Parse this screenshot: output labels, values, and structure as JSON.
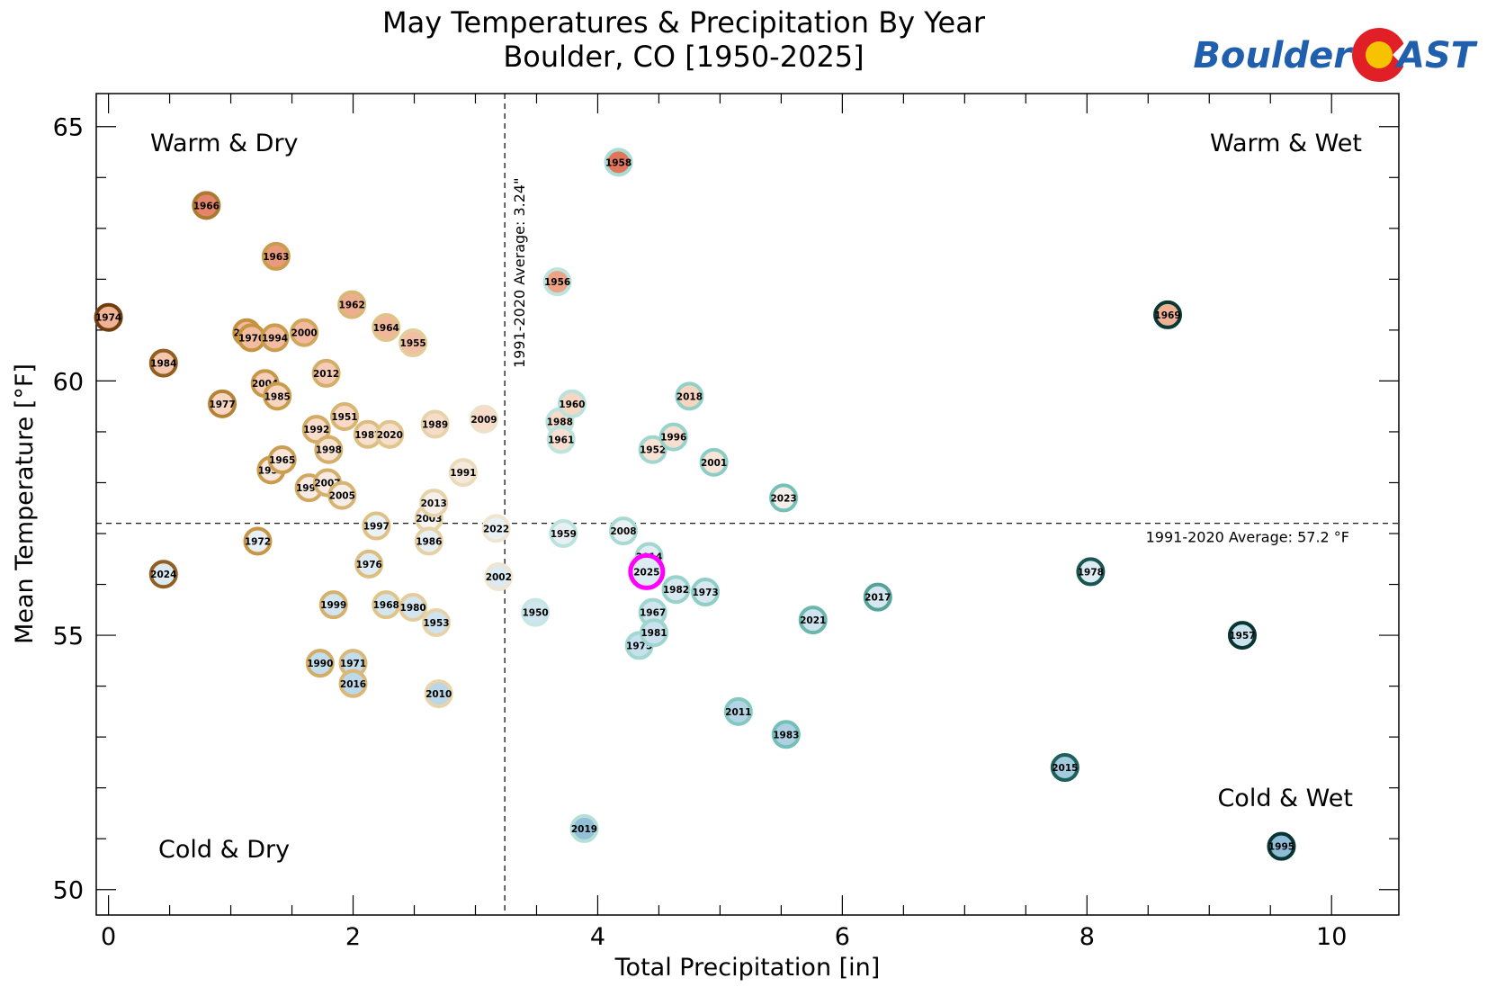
{
  "chart_data": {
    "type": "scatter",
    "title": "May Temperatures & Precipitation By Year",
    "subtitle": "Boulder, CO [1950-2025]",
    "xlabel": "Total Precipitation [in]",
    "ylabel": "Mean Temperature [°F]",
    "xlim": [
      -0.1,
      10.55
    ],
    "ylim": [
      49.5,
      65.65
    ],
    "xticks": [
      0,
      2,
      4,
      6,
      8,
      10
    ],
    "yticks": [
      50,
      55,
      60,
      65
    ],
    "reference_lines": {
      "precip_avg": 3.24,
      "precip_avg_label": "1991-2020 Average: 3.24\"",
      "temp_avg": 57.2,
      "temp_avg_label": "1991-2020 Average: 57.2 °F"
    },
    "quadrant_labels": {
      "warm_dry": "Warm & Dry",
      "warm_wet": "Warm & Wet",
      "cold_dry": "Cold & Dry",
      "cold_wet": "Cold & Wet"
    },
    "highlight_year": "2025",
    "highlight_color": "#ff00ff",
    "points": [
      {
        "year": "1974",
        "x": 0.0,
        "y": 61.25
      },
      {
        "year": "1984",
        "x": 0.45,
        "y": 60.35
      },
      {
        "year": "2024",
        "x": 0.45,
        "y": 56.2
      },
      {
        "year": "1966",
        "x": 0.8,
        "y": 63.45
      },
      {
        "year": "1977",
        "x": 0.93,
        "y": 59.55
      },
      {
        "year": "2006",
        "x": 1.13,
        "y": 60.95
      },
      {
        "year": "1970",
        "x": 1.17,
        "y": 60.85
      },
      {
        "year": "1972",
        "x": 1.22,
        "y": 56.85
      },
      {
        "year": "2004",
        "x": 1.28,
        "y": 59.95
      },
      {
        "year": "1954",
        "x": 1.33,
        "y": 58.25
      },
      {
        "year": "1994",
        "x": 1.36,
        "y": 60.85
      },
      {
        "year": "1963",
        "x": 1.37,
        "y": 62.45
      },
      {
        "year": "1985",
        "x": 1.38,
        "y": 59.7
      },
      {
        "year": "1965",
        "x": 1.42,
        "y": 58.45
      },
      {
        "year": "2000",
        "x": 1.6,
        "y": 60.95
      },
      {
        "year": "1993",
        "x": 1.64,
        "y": 57.9
      },
      {
        "year": "1992",
        "x": 1.7,
        "y": 59.05
      },
      {
        "year": "1990",
        "x": 1.73,
        "y": 54.45
      },
      {
        "year": "1962",
        "x": 1.99,
        "y": 61.5
      },
      {
        "year": "2012",
        "x": 1.78,
        "y": 60.15
      },
      {
        "year": "2007",
        "x": 1.79,
        "y": 58.0
      },
      {
        "year": "1998",
        "x": 1.8,
        "y": 58.65
      },
      {
        "year": "1999",
        "x": 1.84,
        "y": 55.6
      },
      {
        "year": "2005",
        "x": 1.91,
        "y": 57.75
      },
      {
        "year": "1951",
        "x": 1.93,
        "y": 59.3
      },
      {
        "year": "1971",
        "x": 2.0,
        "y": 54.45
      },
      {
        "year": "2016",
        "x": 2.0,
        "y": 54.05
      },
      {
        "year": "1987",
        "x": 2.12,
        "y": 58.95
      },
      {
        "year": "1976",
        "x": 2.13,
        "y": 56.4
      },
      {
        "year": "1997",
        "x": 2.19,
        "y": 57.15
      },
      {
        "year": "1964",
        "x": 2.27,
        "y": 61.05
      },
      {
        "year": "1968",
        "x": 2.27,
        "y": 55.6
      },
      {
        "year": "2020",
        "x": 2.3,
        "y": 58.95
      },
      {
        "year": "1955",
        "x": 2.49,
        "y": 60.75
      },
      {
        "year": "1980",
        "x": 2.49,
        "y": 55.55
      },
      {
        "year": "2003",
        "x": 2.62,
        "y": 57.3
      },
      {
        "year": "1986",
        "x": 2.62,
        "y": 56.85
      },
      {
        "year": "2013",
        "x": 2.66,
        "y": 57.6
      },
      {
        "year": "1989",
        "x": 2.67,
        "y": 59.15
      },
      {
        "year": "1953",
        "x": 2.68,
        "y": 55.25
      },
      {
        "year": "2010",
        "x": 2.7,
        "y": 53.85
      },
      {
        "year": "1991",
        "x": 2.9,
        "y": 58.2
      },
      {
        "year": "2009",
        "x": 3.07,
        "y": 59.25
      },
      {
        "year": "2022",
        "x": 3.17,
        "y": 57.1
      },
      {
        "year": "2002",
        "x": 3.19,
        "y": 56.15
      },
      {
        "year": "1950",
        "x": 3.49,
        "y": 55.45
      },
      {
        "year": "1956",
        "x": 3.67,
        "y": 61.95
      },
      {
        "year": "1988",
        "x": 3.69,
        "y": 59.2
      },
      {
        "year": "1961",
        "x": 3.7,
        "y": 58.85
      },
      {
        "year": "1959",
        "x": 3.72,
        "y": 57.0
      },
      {
        "year": "1960",
        "x": 3.79,
        "y": 59.55
      },
      {
        "year": "2019",
        "x": 3.89,
        "y": 51.2
      },
      {
        "year": "1958",
        "x": 4.17,
        "y": 64.3
      },
      {
        "year": "2008",
        "x": 4.21,
        "y": 57.05
      },
      {
        "year": "1975",
        "x": 4.34,
        "y": 54.8
      },
      {
        "year": "2014",
        "x": 4.42,
        "y": 56.55
      },
      {
        "year": "2025",
        "x": 4.4,
        "y": 56.25
      },
      {
        "year": "1952",
        "x": 4.45,
        "y": 58.65
      },
      {
        "year": "1967",
        "x": 4.45,
        "y": 55.45
      },
      {
        "year": "1981",
        "x": 4.46,
        "y": 55.05
      },
      {
        "year": "1996",
        "x": 4.62,
        "y": 58.9
      },
      {
        "year": "1982",
        "x": 4.64,
        "y": 55.9
      },
      {
        "year": "2018",
        "x": 4.75,
        "y": 59.7
      },
      {
        "year": "1973",
        "x": 4.88,
        "y": 55.85
      },
      {
        "year": "2001",
        "x": 4.95,
        "y": 58.4
      },
      {
        "year": "2011",
        "x": 5.15,
        "y": 53.5
      },
      {
        "year": "2023",
        "x": 5.52,
        "y": 57.7
      },
      {
        "year": "1983",
        "x": 5.54,
        "y": 53.05
      },
      {
        "year": "2021",
        "x": 5.76,
        "y": 55.3
      },
      {
        "year": "2017",
        "x": 6.29,
        "y": 55.75
      },
      {
        "year": "2015",
        "x": 7.82,
        "y": 52.4
      },
      {
        "year": "1978",
        "x": 8.03,
        "y": 56.25
      },
      {
        "year": "1969",
        "x": 8.66,
        "y": 61.3
      },
      {
        "year": "1957",
        "x": 9.27,
        "y": 55.0
      },
      {
        "year": "1995",
        "x": 9.59,
        "y": 50.85
      }
    ]
  },
  "logo": {
    "text_left": "Boulder",
    "text_right": "AST",
    "colors": {
      "blue": "#1f5fad",
      "red": "#e01f26",
      "gold": "#f7c200"
    }
  }
}
